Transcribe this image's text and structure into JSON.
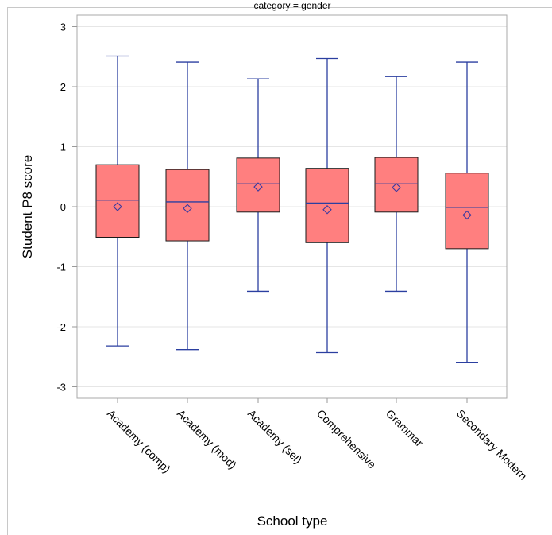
{
  "chart_data": {
    "type": "box",
    "title": "category = gender",
    "xlabel": "School type",
    "ylabel": "Student  P8 score",
    "ylim": [
      -3.2,
      3.2
    ],
    "yticks": [
      3,
      2,
      1,
      0,
      -1,
      -2,
      -3
    ],
    "ytick_labels": [
      "3",
      "2",
      "1",
      "0",
      "-1",
      "-2",
      "-3"
    ],
    "grid": true,
    "categories": [
      "Academy (comp)",
      "Academy (mod)",
      "Academy (sel)",
      "Comprehensive",
      "Grammar",
      "Secondary Modern"
    ],
    "boxes": [
      {
        "category": "Academy (comp)",
        "min": -2.32,
        "q1": -0.51,
        "median": 0.11,
        "mean": 0.0,
        "q3": 0.7,
        "max": 2.51
      },
      {
        "category": "Academy (mod)",
        "min": -2.38,
        "q1": -0.57,
        "median": 0.08,
        "mean": -0.03,
        "q3": 0.62,
        "max": 2.41
      },
      {
        "category": "Academy (sel)",
        "min": -1.41,
        "q1": -0.09,
        "median": 0.38,
        "mean": 0.33,
        "q3": 0.81,
        "max": 2.13
      },
      {
        "category": "Comprehensive",
        "min": -2.43,
        "q1": -0.6,
        "median": 0.06,
        "mean": -0.05,
        "q3": 0.64,
        "max": 2.47
      },
      {
        "category": "Grammar",
        "min": -1.41,
        "q1": -0.09,
        "median": 0.38,
        "mean": 0.32,
        "q3": 0.82,
        "max": 2.17
      },
      {
        "category": "Secondary Modern",
        "min": -2.6,
        "q1": -0.7,
        "median": -0.01,
        "mean": -0.14,
        "q3": 0.56,
        "max": 2.41
      }
    ],
    "colors": {
      "box_fill": "#ff7f7f",
      "box_stroke": "#1a1a1a",
      "whisker": "#2b3fa0",
      "median": "#2b3fa0",
      "mean_marker": "#3a3aa0",
      "grid": "#e6e6e6",
      "axis": "#9a9a9a"
    }
  }
}
